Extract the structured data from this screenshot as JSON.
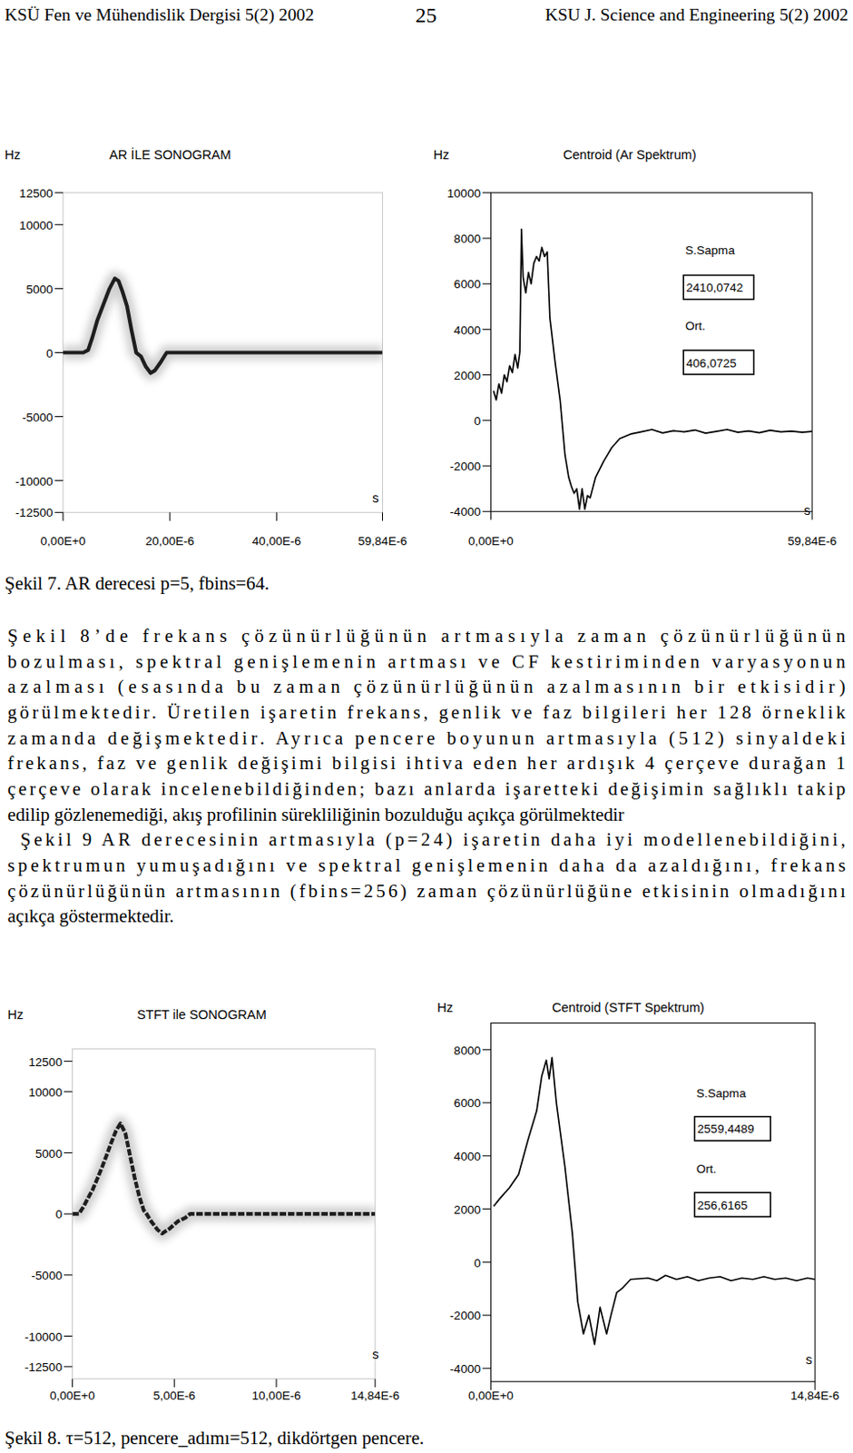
{
  "header": {
    "left": "KSÜ Fen ve Mühendislik Dergisi 5(2) 2002",
    "page": "25",
    "right": "KSU  J. Science and Engineering 5(2) 2002"
  },
  "chart_data": [
    {
      "type": "sonogram",
      "title": "AR İLE SONOGRAM",
      "y_label": "Hz",
      "x_label": "s",
      "line_style": "solid",
      "x": [
        0,
        3.8e-06,
        4.7e-06,
        5.5e-06,
        6.4e-06,
        7.5e-06,
        8.7e-06,
        9.7e-06,
        1.04e-05,
        1.11e-05,
        1.2e-05,
        1.28e-05,
        1.37e-05,
        1.46e-05,
        1.55e-05,
        1.64e-05,
        1.72e-05,
        1.82e-05,
        1.94e-05,
        3e-05,
        4.5e-05,
        5.984e-05
      ],
      "values": [
        0,
        0,
        200,
        1200,
        2500,
        3700,
        5000,
        5800,
        5600,
        4800,
        3600,
        1800,
        0,
        -300,
        -1100,
        -1600,
        -1400,
        -800,
        0,
        0,
        0,
        0
      ],
      "xlim": [
        0,
        5.984e-05
      ],
      "ylim": [
        -12500,
        12500
      ],
      "xticks": [
        {
          "value": 0,
          "label": "0,00E+0"
        },
        {
          "value": 2e-05,
          "label": "20,00E-6"
        },
        {
          "value": 4e-05,
          "label": "40,00E-6"
        },
        {
          "value": 5.984e-05,
          "label": "59,84E-6"
        }
      ],
      "yticks": [
        -12500,
        -10000,
        -5000,
        0,
        5000,
        10000,
        12500
      ]
    },
    {
      "type": "line",
      "title": "Centroid (Ar Spektrum)",
      "y_label": "Hz",
      "x_label": "s",
      "x": [
        5e-07,
        1e-06,
        1.5e-06,
        2e-06,
        2.5e-06,
        3e-06,
        3.5e-06,
        4e-06,
        4.5e-06,
        5e-06,
        5.4e-06,
        5.7e-06,
        6e-06,
        6.5e-06,
        7e-06,
        7.5e-06,
        8e-06,
        8.5e-06,
        9e-06,
        9.5e-06,
        1e-05,
        1.05e-05,
        1.1e-05,
        1.2e-05,
        1.29e-05,
        1.38e-05,
        1.45e-05,
        1.5e-05,
        1.55e-05,
        1.6e-05,
        1.65e-05,
        1.7e-05,
        1.75e-05,
        1.8e-05,
        1.85e-05,
        1.95e-05,
        2.1e-05,
        2.25e-05,
        2.4e-05,
        2.6e-05,
        2.8e-05,
        3e-05,
        3.2e-05,
        3.4e-05,
        3.6e-05,
        3.8e-05,
        4e-05,
        4.2e-05,
        4.4e-05,
        4.6e-05,
        4.8e-05,
        5e-05,
        5.2e-05,
        5.4e-05,
        5.6e-05,
        5.8e-05,
        5.984e-05
      ],
      "values": [
        1300,
        900,
        1600,
        1200,
        2000,
        1700,
        2400,
        2100,
        2900,
        2300,
        3000,
        8400,
        6300,
        5600,
        6500,
        6000,
        6900,
        7200,
        7000,
        7600,
        7200,
        7400,
        4500,
        2500,
        900,
        -1500,
        -2500,
        -2900,
        -3200,
        -3000,
        -3900,
        -3000,
        -3900,
        -3300,
        -3400,
        -2500,
        -1800,
        -1200,
        -800,
        -600,
        -500,
        -400,
        -550,
        -450,
        -500,
        -420,
        -560,
        -480,
        -400,
        -520,
        -460,
        -540,
        -430,
        -500,
        -470,
        -520,
        -480
      ],
      "xlim": [
        0,
        5.984e-05
      ],
      "ylim": [
        -4000,
        10000
      ],
      "xticks": [
        {
          "value": 0,
          "label": "0,00E+0"
        },
        {
          "value": 5.984e-05,
          "label": "59,84E-6"
        }
      ],
      "yticks": [
        -4000,
        -2000,
        0,
        2000,
        4000,
        6000,
        8000,
        10000
      ],
      "annotations": [
        {
          "title": "S.Sapma",
          "text": "2410,0742"
        },
        {
          "title": "Ort.",
          "text": "406,0725"
        }
      ]
    },
    {
      "type": "sonogram",
      "title": "STFT ile SONOGRAM",
      "y_label": "Hz",
      "x_label": "s",
      "line_style": "dashed",
      "x": [
        0,
        3.2e-07,
        5.5e-07,
        7.7e-07,
        1e-06,
        1.23e-06,
        1.45e-06,
        1.68e-06,
        1.9e-06,
        2.14e-06,
        2.36e-06,
        2.6e-06,
        2.8e-06,
        3.05e-06,
        3.27e-06,
        3.5e-06,
        3.64e-06,
        3.86e-06,
        4.18e-06,
        4.4e-06,
        4.77e-06,
        5.18e-06,
        5.55e-06,
        5.77e-06,
        1.484e-05
      ],
      "values": [
        0,
        0,
        600,
        1300,
        2000,
        2900,
        3800,
        4800,
        5800,
        6800,
        7400,
        6600,
        5000,
        3000,
        1500,
        300,
        0,
        -600,
        -1300,
        -1600,
        -1200,
        -600,
        -300,
        0,
        0
      ],
      "xlim": [
        0,
        1.484e-05
      ],
      "ylim": [
        -13500,
        13500
      ],
      "xticks": [
        {
          "value": 0,
          "label": "0,00E+0"
        },
        {
          "value": 5e-06,
          "label": "5,00E-6"
        },
        {
          "value": 1e-05,
          "label": "10,00E-6"
        },
        {
          "value": 1.484e-05,
          "label": "14,84E-6"
        }
      ],
      "yticks": [
        -12500,
        -10000,
        -5000,
        0,
        5000,
        10000,
        12500
      ]
    },
    {
      "type": "line",
      "title": "Centroid (STFT Spektrum)",
      "y_label": "Hz",
      "x_label": "s",
      "x": [
        1.3e-07,
        4.2e-07,
        8.5e-07,
        1.27e-06,
        1.7e-06,
        2.1e-06,
        2.33e-06,
        2.54e-06,
        2.67e-06,
        2.8e-06,
        3e-06,
        3.39e-06,
        3.73e-06,
        3.98e-06,
        4.24e-06,
        4.49e-06,
        4.75e-06,
        5e-06,
        5.3e-06,
        5.5e-06,
        5.76e-06,
        6e-06,
        6.4e-06,
        7.2e-06,
        7.6e-06,
        8e-06,
        8.5e-06,
        9e-06,
        9.5e-06,
        1e-05,
        1.05e-05,
        1.1e-05,
        1.15e-05,
        1.2e-05,
        1.25e-05,
        1.3e-05,
        1.35e-05,
        1.4e-05,
        1.45e-05,
        1.484e-05
      ],
      "values": [
        2100,
        2400,
        2800,
        3300,
        4600,
        5700,
        7000,
        7600,
        6900,
        7700,
        6000,
        3600,
        1100,
        -1500,
        -2700,
        -2000,
        -3100,
        -1700,
        -2700,
        -2000,
        -1150,
        -1000,
        -650,
        -600,
        -700,
        -500,
        -650,
        -550,
        -700,
        -600,
        -550,
        -700,
        -600,
        -650,
        -550,
        -650,
        -600,
        -700,
        -600,
        -650
      ],
      "xlim": [
        0,
        1.484e-05
      ],
      "ylim": [
        -4500,
        9000
      ],
      "xticks": [
        {
          "value": 0,
          "label": "0,00E+0"
        },
        {
          "value": 1.484e-05,
          "label": "14,84E-6"
        }
      ],
      "yticks": [
        -4000,
        -2000,
        0,
        2000,
        4000,
        6000,
        8000
      ],
      "annotations": [
        {
          "title": "S.Sapma",
          "text": "2559,4489"
        },
        {
          "title": "Ort.",
          "text": "256,6165"
        }
      ]
    }
  ],
  "captions": [
    "Şekil 7. AR derecesi p=5, fbins=64.",
    "Şekil 8. τ=512, pencere_adımı=512, dikdörtgen pencere."
  ],
  "paragraphs": [
    [
      "Şekil 8’de frekans çözünürlüğünün artmasıyla zaman çözünürlüğünün",
      "bozulması, spektral genişlemenin artması ve CF kestiriminden varyasyonun",
      "azalması (esasında bu zaman çözünürlüğünün azalmasının bir etkisidir)",
      "görülmektedir. Üretilen işaretin frekans, genlik ve faz bilgileri her 128 örneklik",
      "zamanda değişmektedir. Ayrıca pencere boyunun artmasıyla (512) sinyaldeki",
      "frekans, faz ve genlik  değişimi bilgisi ihtiva eden her ardışık 4 çerçeve durağan 1",
      "çerçeve olarak incelenebildiğinden; bazı anlarda işaretteki değişimin sağlıklı takip",
      "edilip gözlenemediği, akış profilinin sürekliliğinin bozulduğu açıkça görülmektedir"
    ],
    [
      "Şekil 9 AR derecesinin artmasıyla (p=24) işaretin daha iyi modellenebildiğini,",
      "spektrumun yumuşadığını ve spektral genişlemenin daha da azaldığını, frekans",
      "çözünürlüğünün artmasının (fbins=256) zaman çözünürlüğüne etkisinin olmadığını",
      "açıkça göstermektedir."
    ]
  ]
}
